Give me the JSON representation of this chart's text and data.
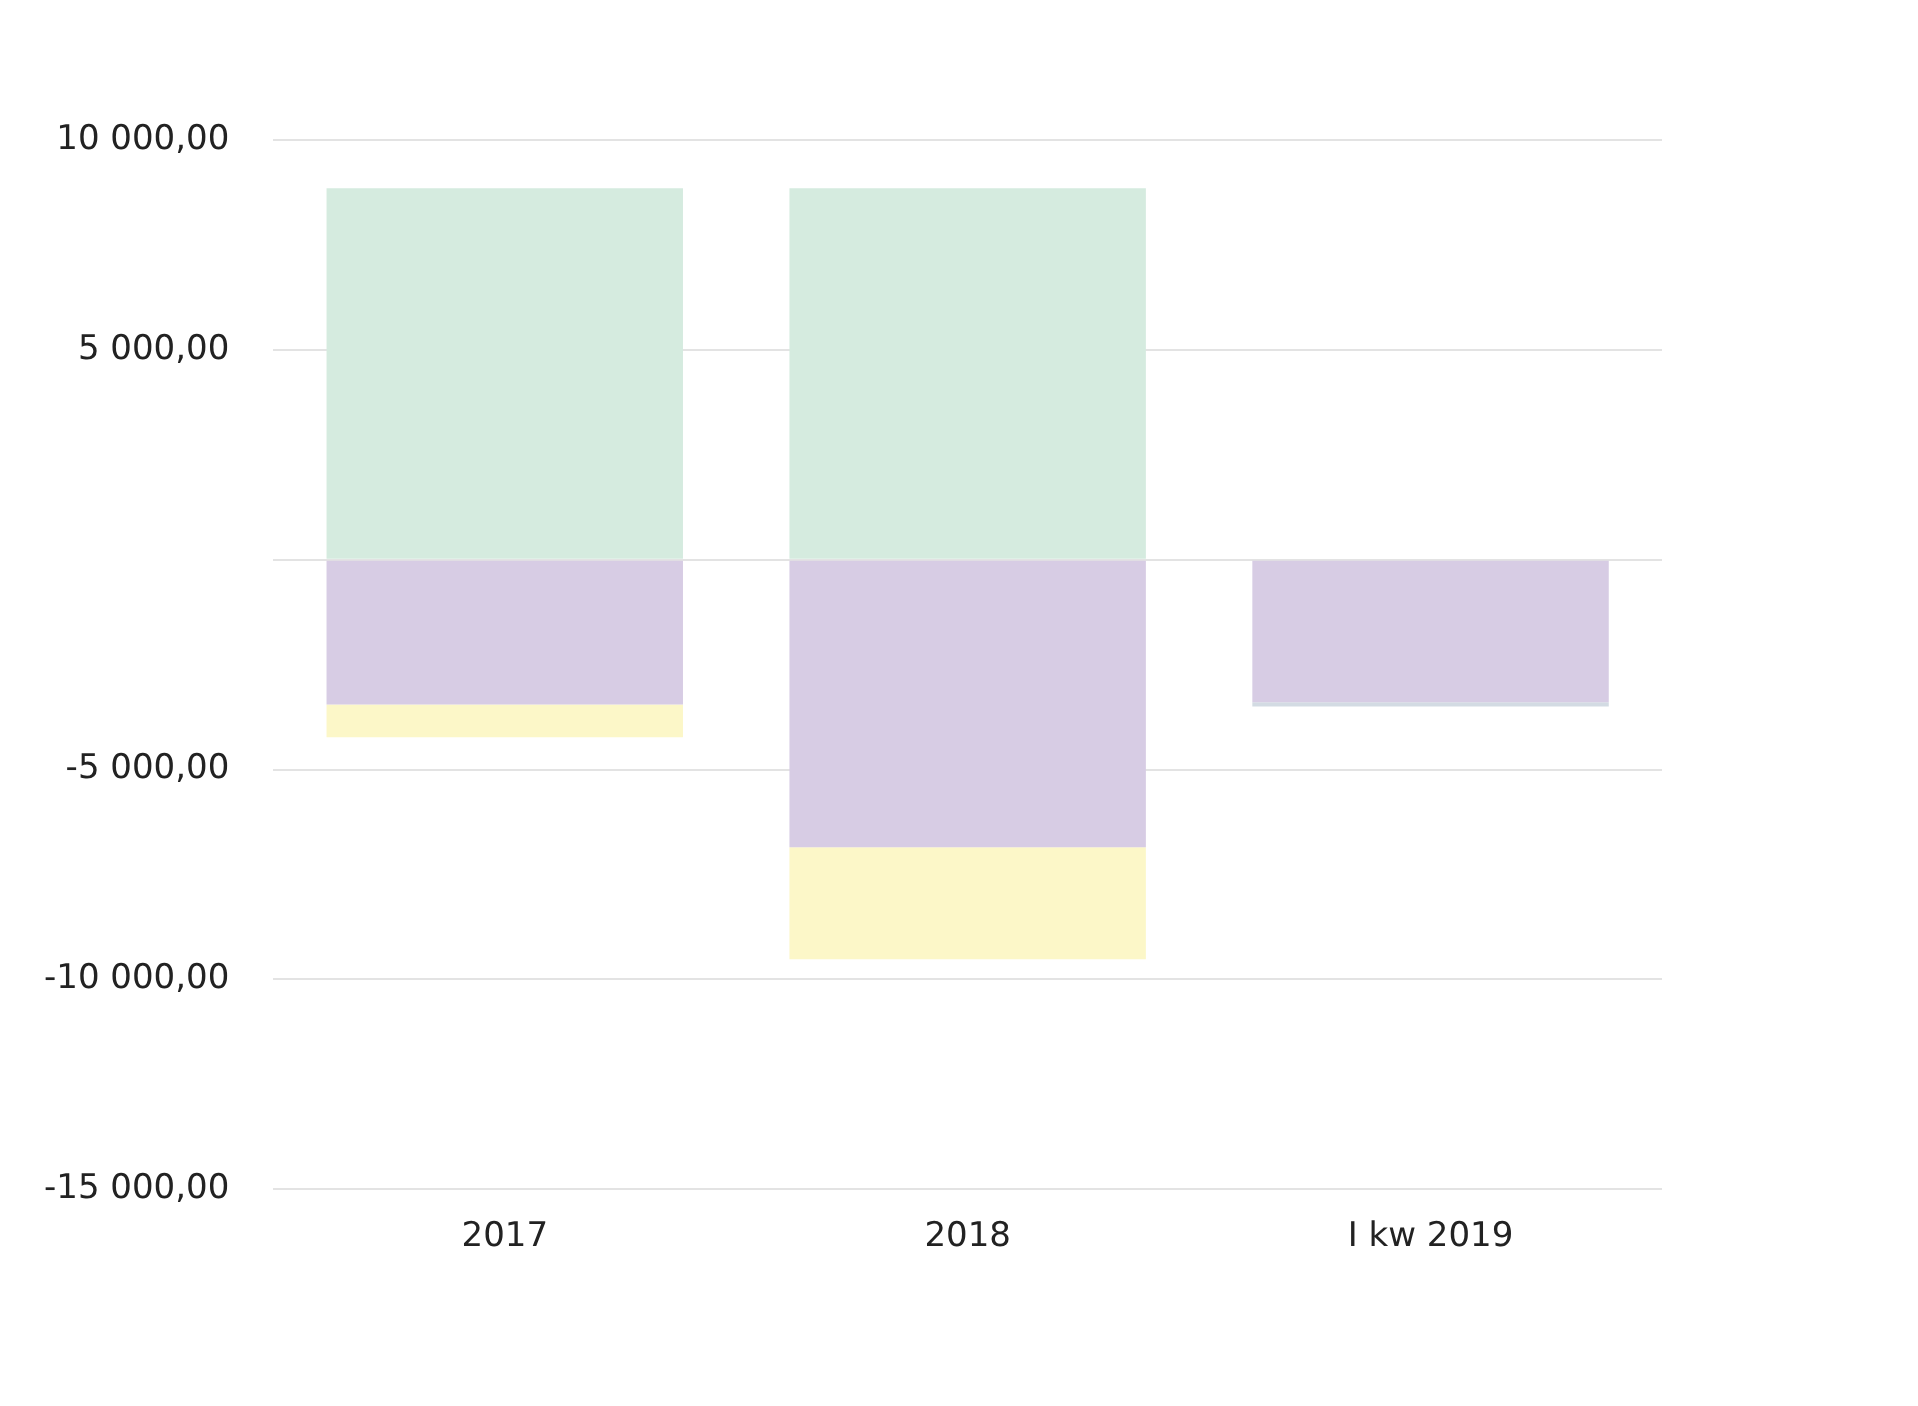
{
  "chart_data": {
    "type": "bar",
    "stacked": true,
    "categories": [
      "2017",
      "2018",
      "I kw 2019"
    ],
    "series": [
      {
        "color": "#d5ebdf",
        "values": [
          8850,
          8850,
          null
        ]
      },
      {
        "color": "#d7cce4",
        "values": [
          -3450,
          -6850,
          -3400
        ]
      },
      {
        "color": "#fcf7c8",
        "values": [
          -780,
          -2670,
          null
        ]
      },
      {
        "color": "#d3dbe3",
        "values": [
          null,
          null,
          -100
        ]
      }
    ],
    "ylim": [
      -15000,
      10000
    ],
    "yticks": [
      {
        "value": -15000,
        "label": "-15 000,00"
      },
      {
        "value": -10000,
        "label": "-10 000,00"
      },
      {
        "value": -5000,
        "label": "-5 000,00"
      },
      {
        "value": 0,
        "label": null
      },
      {
        "value": 5000,
        "label": "5 000,00"
      },
      {
        "value": 10000,
        "label": "10 000,00"
      }
    ],
    "grid": "y",
    "legend": false
  }
}
